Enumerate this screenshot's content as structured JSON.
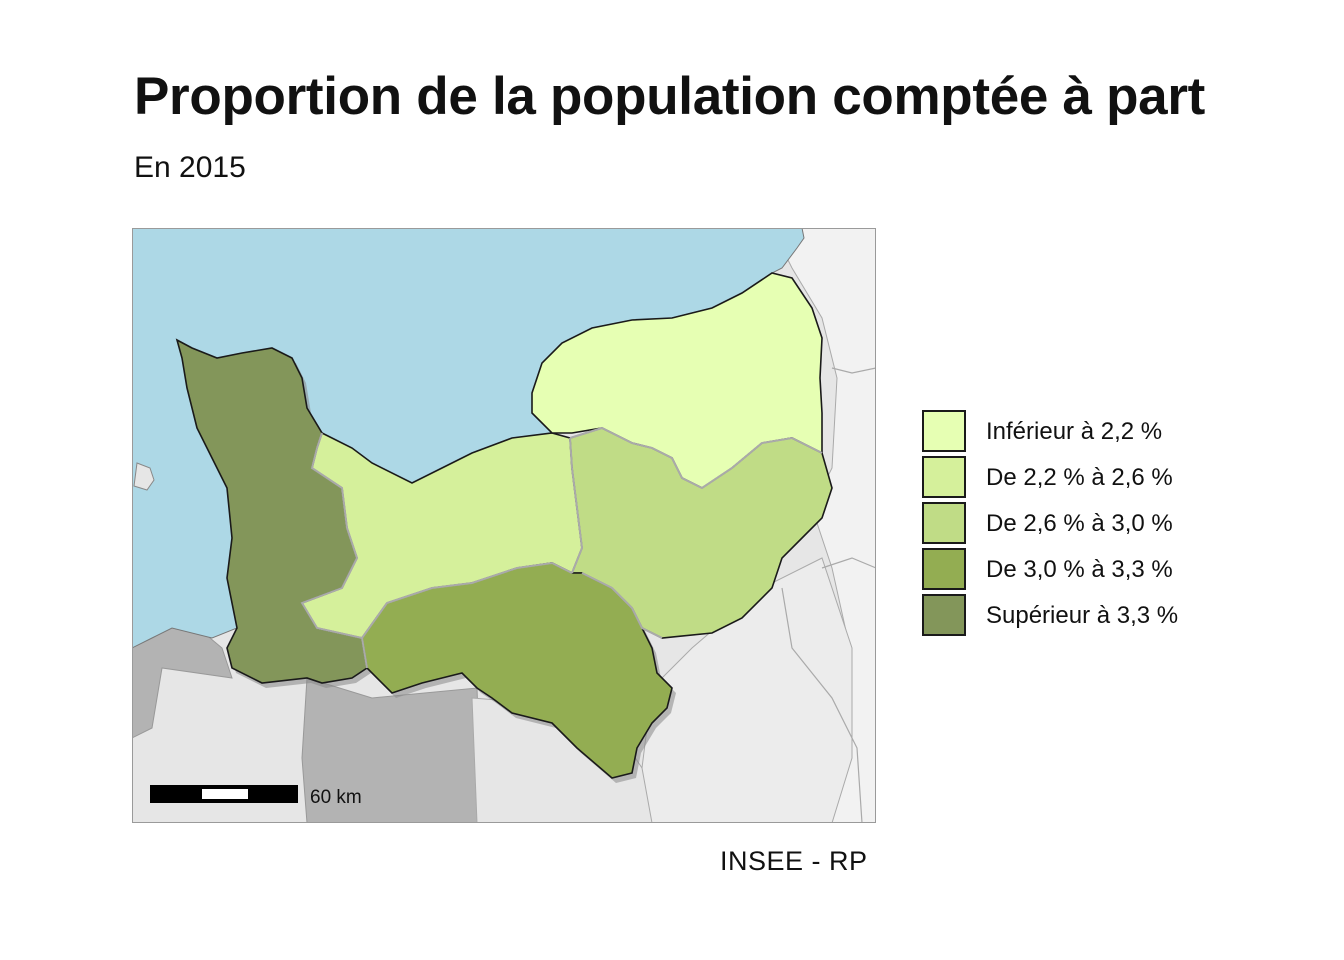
{
  "title": "Proportion de la population comptée à part",
  "subtitle": "En 2015",
  "source": "INSEE - RP",
  "scale_bar_label": "60 km",
  "colors": {
    "sea": "#add8e6",
    "outside_light": "#f2f2f2",
    "outside_mid": "#e6e6e6",
    "outside_dark": "#b3b3b3",
    "class_1": "#e6ffb3",
    "class_2": "#d5f09b",
    "class_3": "#c0dc86",
    "class_4": "#93ad52",
    "class_5": "#83965a"
  },
  "legend": [
    {
      "label": "Inférieur à 2,2 %",
      "color": "#e6ffb3"
    },
    {
      "label": "De 2,2 % à 2,6 %",
      "color": "#d5f09b"
    },
    {
      "label": "De 2,6 % à 3,0 %",
      "color": "#c0dc86"
    },
    {
      "label": "De 3,0 % à 3,3 %",
      "color": "#93ad52"
    },
    {
      "label": "Supérieur à 3,3 %",
      "color": "#83965a"
    }
  ],
  "regions": [
    {
      "name": "Seine-Maritime",
      "class": 1
    },
    {
      "name": "Calvados",
      "class": 2
    },
    {
      "name": "Eure",
      "class": 3
    },
    {
      "name": "Orne",
      "class": 4
    },
    {
      "name": "Manche",
      "class": 5
    }
  ]
}
